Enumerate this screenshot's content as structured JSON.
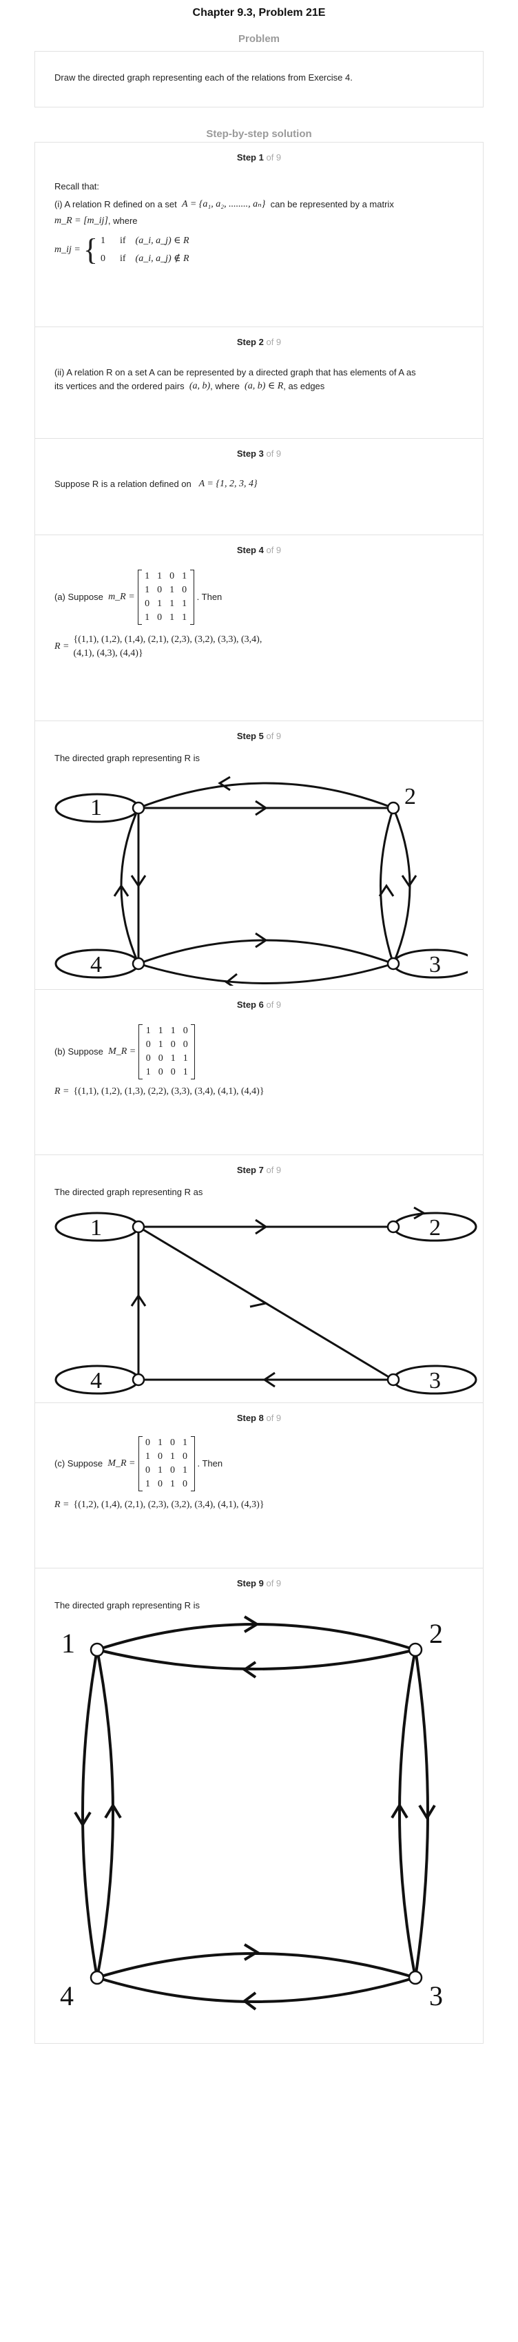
{
  "header": {
    "chapter_title": "Chapter 9.3, Problem 21E"
  },
  "problem": {
    "label": "Problem",
    "text": "Draw the directed graph representing each of the relations from Exercise 4."
  },
  "solution": {
    "label": "Step-by-step solution",
    "of_total": "of 9"
  },
  "steps": [
    {
      "step_label": "Step 1",
      "recall": "Recall that:",
      "line1_pre": "(i) A relation R defined on a set",
      "line1_set": "A = {a₁, a₂, ........, aₙ}",
      "line1_post": "can be represented by a matrix",
      "line2_matrix": "m_R = [m_ij]",
      "line2_post": ", where",
      "case_lhs": "m_ij =",
      "case1_val": "1",
      "case1_if": "if",
      "case1_cond": "(a_i, a_j) ∈ R",
      "case2_val": "0",
      "case2_if": "if",
      "case2_cond": "(a_i, a_j) ∉ R"
    },
    {
      "step_label": "Step 2",
      "line1": "(ii) A relation R on a set A can be represented by a directed graph that has elements of A as",
      "line2_pre": "its vertices and the ordered pairs",
      "line2_pair": "(a, b)",
      "line2_mid": ", where",
      "line2_cond": "(a, b) ∈ R",
      "line2_post": ", as edges"
    },
    {
      "step_label": "Step 3",
      "text_pre": "Suppose R is a relation defined on",
      "text_set": "A = {1, 2, 3, 4}"
    },
    {
      "step_label": "Step 4",
      "part": "(a) Suppose",
      "matrix_name": "m_R =",
      "matrix": [
        [
          "1",
          "1",
          "0",
          "1"
        ],
        [
          "1",
          "0",
          "1",
          "0"
        ],
        [
          "0",
          "1",
          "1",
          "1"
        ],
        [
          "1",
          "0",
          "1",
          "1"
        ]
      ],
      "then": ". Then",
      "relation_lhs": "R =",
      "relation_line1": "{(1,1), (1,2), (1,4), (2,1), (2,3), (3,2), (3,3), (3,4),",
      "relation_line2": "(4,1), (4,3), (4,4)}"
    },
    {
      "step_label": "Step 5",
      "text": "The directed graph representing R is",
      "vertex_labels": [
        "1",
        "2",
        "3",
        "4"
      ]
    },
    {
      "step_label": "Step 6",
      "part": "(b) Suppose",
      "matrix_name": "M_R =",
      "matrix": [
        [
          "1",
          "1",
          "1",
          "0"
        ],
        [
          "0",
          "1",
          "0",
          "0"
        ],
        [
          "0",
          "0",
          "1",
          "1"
        ],
        [
          "1",
          "0",
          "0",
          "1"
        ]
      ],
      "relation_lhs": "R =",
      "relation": "{(1,1), (1,2), (1,3), (2,2), (3,3), (3,4), (4,1), (4,4)}"
    },
    {
      "step_label": "Step 7",
      "text": "The directed graph representing R as",
      "vertex_labels": [
        "1",
        "2",
        "3",
        "4"
      ]
    },
    {
      "step_label": "Step 8",
      "part": "(c) Suppose",
      "matrix_name": "M_R =",
      "matrix": [
        [
          "0",
          "1",
          "0",
          "1"
        ],
        [
          "1",
          "0",
          "1",
          "0"
        ],
        [
          "0",
          "1",
          "0",
          "1"
        ],
        [
          "1",
          "0",
          "1",
          "0"
        ]
      ],
      "then": ". Then",
      "relation_lhs": "R =",
      "relation": "{(1,2), (1,4), (2,1), (2,3), (3,2), (3,4), (4,1), (4,3)}"
    },
    {
      "step_label": "Step 9",
      "text": "The directed graph representing R is",
      "vertex_labels": [
        "1",
        "2",
        "3",
        "4"
      ]
    }
  ],
  "colors": {
    "border": "#e2e2e2",
    "muted": "#9a9a9a",
    "text": "#222222"
  }
}
